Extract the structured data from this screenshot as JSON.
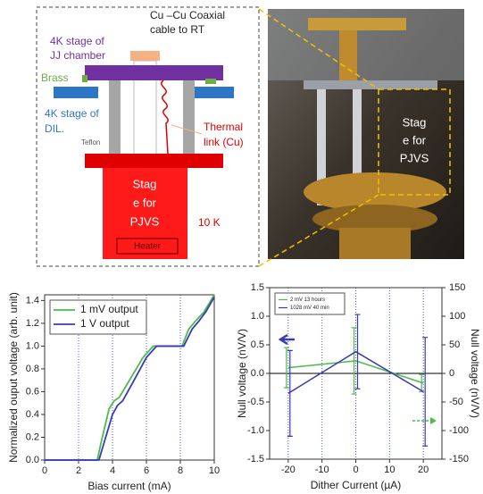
{
  "diagram": {
    "coax": [
      "Cu –Cu Coaxial",
      "cable to RT"
    ],
    "jj": [
      "4K stage of",
      "JJ chamber"
    ],
    "brass": "Brass",
    "dil": [
      "4K stage of",
      "DIL."
    ],
    "teflon": "Teflon",
    "thermal": [
      "Thermal",
      "link (Cu)"
    ],
    "stage": [
      "Stag",
      "e for",
      "PJVS"
    ],
    "temp": "10 K",
    "heater": "Heater"
  },
  "photo": {
    "stage": [
      "Stag",
      "e for",
      "PJVS"
    ]
  },
  "chart_data": [
    {
      "type": "line",
      "xlabel": "Bias current (mA)",
      "ylabel": "Normalized ouput voltage (arb. unit)",
      "xlim": [
        0,
        10
      ],
      "ylim": [
        0,
        1.45
      ],
      "xticks": [
        0,
        2,
        4,
        6,
        8,
        10
      ],
      "yticks": [
        {
          "value": 0,
          "label": "0.0"
        },
        0.2,
        0.4,
        0.6,
        0.8,
        {
          "value": 1,
          "label": "1.0"
        },
        1.2,
        1.4
      ],
      "grid": "x",
      "legend": "upper left",
      "series": [
        {
          "name": "1 mV output",
          "color": "#4cbb47",
          "x": [
            0,
            2,
            3.1,
            3.4,
            3.8,
            4.1,
            4.4,
            5,
            5.8,
            6.4,
            7,
            7.5,
            8.1,
            8.5,
            8.9,
            9.4,
            10
          ],
          "values": [
            0,
            0,
            0,
            0.2,
            0.45,
            0.52,
            0.55,
            0.7,
            0.9,
            1,
            1,
            1,
            1,
            1.15,
            1.22,
            1.3,
            1.45
          ]
        },
        {
          "name": "1 V output",
          "color": "#3a3ab8",
          "x": [
            0,
            2,
            3.2,
            3.6,
            4,
            4.3,
            4.6,
            5.2,
            6,
            6.6,
            7,
            7.5,
            8.2,
            8.7,
            9.1,
            9.5,
            10
          ],
          "values": [
            0,
            0,
            0,
            0.2,
            0.4,
            0.48,
            0.52,
            0.68,
            0.9,
            1,
            1,
            1,
            1,
            1.15,
            1.22,
            1.3,
            1.43
          ]
        }
      ]
    },
    {
      "type": "errorbar",
      "xlabel": "Dither Current (µA)",
      "ylabel": "Null voltage (nV/V)",
      "y2label": "Null voltage (nV/V)",
      "xlim": [
        -25.5,
        25.5
      ],
      "ylim": [
        -1.5,
        1.5
      ],
      "y2lim": [
        -150,
        150
      ],
      "xticks": [
        -20,
        -10,
        0,
        10,
        20
      ],
      "yticks": [
        1.5,
        {
          "value": 1,
          "label": "1.0"
        },
        0.5,
        {
          "value": 0,
          "label": "0.0"
        },
        -0.5,
        {
          "value": -1,
          "label": "-1.0"
        },
        -1.5
      ],
      "y2ticks": [
        150,
        100,
        50,
        0,
        -50,
        -100,
        -150
      ],
      "grid": "x",
      "legend": "upper left",
      "series": [
        {
          "name": "2 mV 13 hours",
          "color": "#4cbb47",
          "x": [
            -20,
            0,
            20
          ],
          "values": [
            0.1,
            0.22,
            -0.17
          ],
          "errors": [
            0.35,
            0.58,
            0.15
          ]
        },
        {
          "name": "1028 mV 40 min",
          "color": "#3a3ab8",
          "axis": "y2",
          "x": [
            -20,
            0,
            20
          ],
          "values": [
            -35,
            38,
            -32
          ],
          "errors": [
            75,
            65,
            95
          ]
        }
      ]
    }
  ]
}
